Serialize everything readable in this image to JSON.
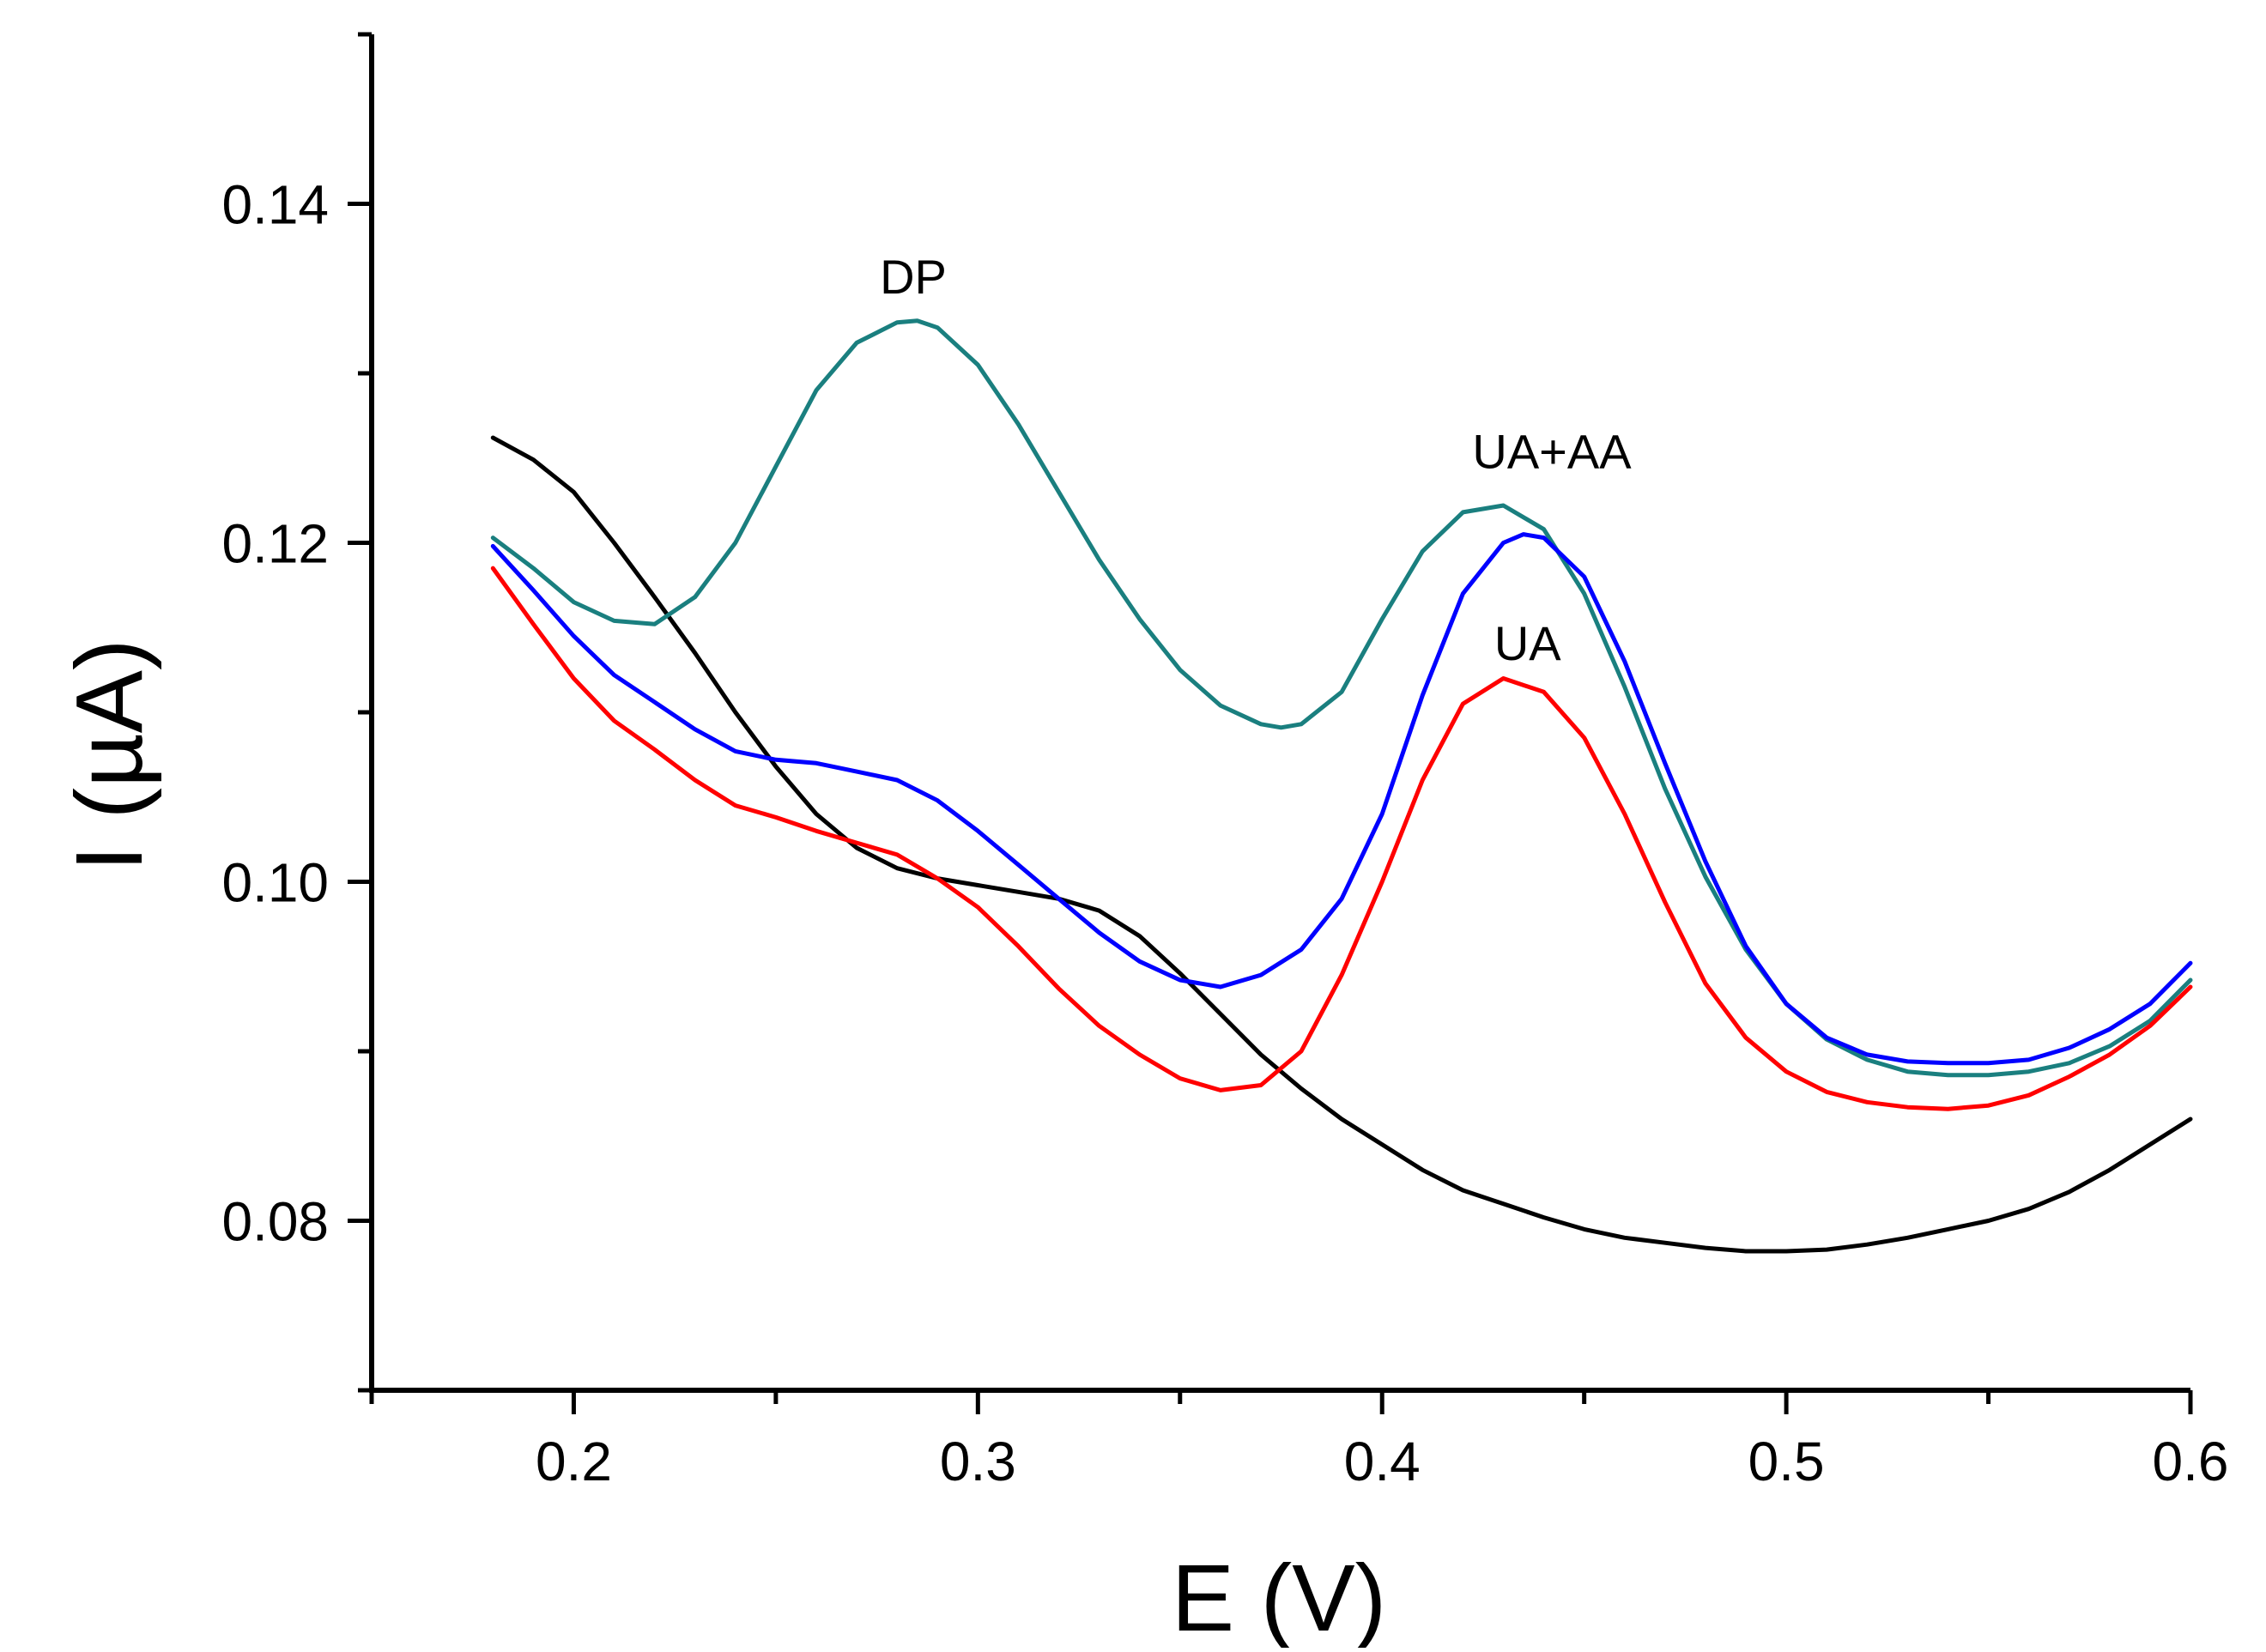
{
  "chart_data": {
    "type": "line",
    "title": "",
    "xlabel": "E (V)",
    "ylabel": "I (µA)",
    "xlim": [
      0.15,
      0.6
    ],
    "ylim": [
      0.07,
      0.15
    ],
    "xticks": [
      0.2,
      0.3,
      0.4,
      0.5,
      0.6
    ],
    "xtick_labels": [
      "0.2",
      "0.3",
      "0.4",
      "0.5",
      "0.6"
    ],
    "xminor": [
      0.15,
      0.25,
      0.35,
      0.45,
      0.55
    ],
    "yticks": [
      0.08,
      0.1,
      0.12,
      0.14
    ],
    "ytick_labels": [
      "0.08",
      "0.10",
      "0.12",
      "0.14"
    ],
    "yminor": [
      0.07,
      0.09,
      0.11,
      0.13,
      0.15
    ],
    "grid": false,
    "legend": "none",
    "annotations": [
      {
        "text": "DP",
        "x": 0.284,
        "y": 0.1347
      },
      {
        "text": "UA+AA",
        "x": 0.442,
        "y": 0.1244
      },
      {
        "text": "UA",
        "x": 0.436,
        "y": 0.1131
      }
    ],
    "series": [
      {
        "name": "Black",
        "color": "#000000",
        "x": [
          0.18,
          0.19,
          0.2,
          0.21,
          0.22,
          0.23,
          0.24,
          0.25,
          0.26,
          0.27,
          0.28,
          0.29,
          0.3,
          0.31,
          0.32,
          0.33,
          0.34,
          0.35,
          0.36,
          0.37,
          0.38,
          0.39,
          0.4,
          0.41,
          0.42,
          0.43,
          0.44,
          0.45,
          0.46,
          0.47,
          0.48,
          0.49,
          0.5,
          0.51,
          0.52,
          0.53,
          0.54,
          0.55,
          0.56,
          0.57,
          0.58,
          0.59,
          0.6
        ],
        "y": [
          0.1262,
          0.1249,
          0.123,
          0.12,
          0.1168,
          0.1135,
          0.11,
          0.1068,
          0.104,
          0.102,
          0.1008,
          0.1002,
          0.0998,
          0.0994,
          0.099,
          0.0983,
          0.0968,
          0.0946,
          0.0922,
          0.0898,
          0.0878,
          0.086,
          0.0845,
          0.083,
          0.0818,
          0.081,
          0.0802,
          0.0795,
          0.079,
          0.0787,
          0.0784,
          0.0782,
          0.0782,
          0.0783,
          0.0786,
          0.079,
          0.0795,
          0.08,
          0.0807,
          0.0817,
          0.083,
          0.0845,
          0.086
        ]
      },
      {
        "name": "DP",
        "color": "#1a7f7f",
        "x": [
          0.18,
          0.19,
          0.2,
          0.21,
          0.22,
          0.23,
          0.24,
          0.25,
          0.26,
          0.27,
          0.28,
          0.285,
          0.29,
          0.3,
          0.31,
          0.32,
          0.33,
          0.34,
          0.35,
          0.36,
          0.37,
          0.375,
          0.38,
          0.39,
          0.4,
          0.41,
          0.42,
          0.43,
          0.44,
          0.45,
          0.46,
          0.47,
          0.48,
          0.49,
          0.5,
          0.51,
          0.52,
          0.53,
          0.54,
          0.55,
          0.56,
          0.57,
          0.58,
          0.59,
          0.6
        ],
        "y": [
          0.1203,
          0.1185,
          0.1165,
          0.1154,
          0.1152,
          0.1168,
          0.12,
          0.1245,
          0.129,
          0.1318,
          0.133,
          0.1331,
          0.1327,
          0.1305,
          0.127,
          0.123,
          0.119,
          0.1155,
          0.1125,
          0.1104,
          0.1093,
          0.1091,
          0.1093,
          0.1112,
          0.1155,
          0.1195,
          0.1218,
          0.1222,
          0.1208,
          0.117,
          0.1115,
          0.1055,
          0.1003,
          0.096,
          0.0928,
          0.0907,
          0.0895,
          0.0888,
          0.0886,
          0.0886,
          0.0888,
          0.0893,
          0.0903,
          0.0918,
          0.0942
        ]
      },
      {
        "name": "UA+AA",
        "color": "#0000ff",
        "x": [
          0.18,
          0.19,
          0.2,
          0.21,
          0.22,
          0.23,
          0.24,
          0.25,
          0.26,
          0.27,
          0.28,
          0.29,
          0.3,
          0.31,
          0.32,
          0.33,
          0.34,
          0.35,
          0.36,
          0.37,
          0.38,
          0.39,
          0.4,
          0.41,
          0.42,
          0.43,
          0.435,
          0.44,
          0.45,
          0.46,
          0.47,
          0.48,
          0.49,
          0.5,
          0.51,
          0.52,
          0.53,
          0.54,
          0.55,
          0.56,
          0.57,
          0.58,
          0.59,
          0.6
        ],
        "y": [
          0.1198,
          0.1172,
          0.1145,
          0.1122,
          0.1106,
          0.109,
          0.1077,
          0.1072,
          0.107,
          0.1065,
          0.106,
          0.1048,
          0.103,
          0.101,
          0.099,
          0.097,
          0.0953,
          0.0942,
          0.0938,
          0.0945,
          0.096,
          0.099,
          0.104,
          0.111,
          0.117,
          0.12,
          0.1205,
          0.1203,
          0.118,
          0.113,
          0.107,
          0.1012,
          0.0962,
          0.0928,
          0.0908,
          0.0898,
          0.0894,
          0.0893,
          0.0893,
          0.0895,
          0.0902,
          0.0913,
          0.0928,
          0.0952
        ]
      },
      {
        "name": "UA",
        "color": "#ff0000",
        "x": [
          0.18,
          0.19,
          0.2,
          0.21,
          0.22,
          0.23,
          0.24,
          0.25,
          0.26,
          0.27,
          0.28,
          0.29,
          0.3,
          0.31,
          0.32,
          0.33,
          0.34,
          0.35,
          0.36,
          0.37,
          0.38,
          0.39,
          0.4,
          0.41,
          0.42,
          0.43,
          0.44,
          0.45,
          0.46,
          0.47,
          0.48,
          0.49,
          0.5,
          0.51,
          0.52,
          0.53,
          0.54,
          0.55,
          0.56,
          0.57,
          0.58,
          0.59,
          0.6
        ],
        "y": [
          0.1185,
          0.1152,
          0.112,
          0.1095,
          0.1078,
          0.106,
          0.1045,
          0.1038,
          0.103,
          0.1023,
          0.1016,
          0.1002,
          0.0985,
          0.0962,
          0.0937,
          0.0915,
          0.0898,
          0.0884,
          0.0877,
          0.088,
          0.09,
          0.0945,
          0.1,
          0.106,
          0.1105,
          0.112,
          0.1112,
          0.1085,
          0.104,
          0.0988,
          0.094,
          0.0908,
          0.0888,
          0.0876,
          0.087,
          0.0867,
          0.0866,
          0.0868,
          0.0874,
          0.0885,
          0.0898,
          0.0915,
          0.0938
        ]
      }
    ]
  }
}
